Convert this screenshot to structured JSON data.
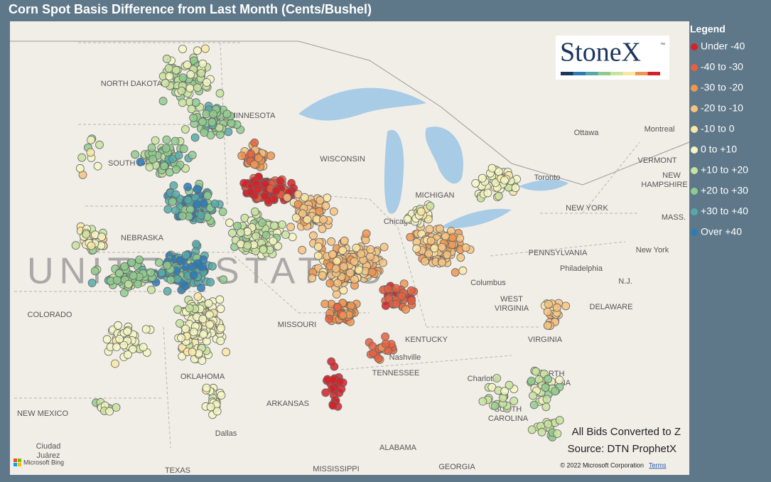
{
  "title": "Corn Spot Basis Difference from Last Month (Cents/Bushel)",
  "legend": {
    "title": "Legend",
    "items": [
      {
        "label": "Under -40",
        "color": "#d62027"
      },
      {
        "label": "-40 to -30",
        "color": "#e8603f"
      },
      {
        "label": "-30 to -20",
        "color": "#f0954f"
      },
      {
        "label": "-20 to -10",
        "color": "#f6c27f"
      },
      {
        "label": "-10 to 0",
        "color": "#fbe7a4"
      },
      {
        "label": "0 to +10",
        "color": "#f4f6c2"
      },
      {
        "label": "+10 to +20",
        "color": "#c8e39d"
      },
      {
        "label": "+20 to +30",
        "color": "#8fcb8d"
      },
      {
        "label": "+30 to +40",
        "color": "#55aaa8"
      },
      {
        "label": "Over +40",
        "color": "#2c7bb9"
      }
    ]
  },
  "logo": {
    "text": "StoneX",
    "mark": "™"
  },
  "map_labels": [
    "NORTH DAKOTA",
    "MINNESOTA",
    "SOUTH DAKOTA",
    "WISCONSIN",
    "MICHIGAN",
    "NEBRASKA",
    "COLORADO",
    "MISSOURI",
    "KENTUCKY",
    "Nashville",
    "TENNESSEE",
    "OKLAHOMA",
    "ARKANSAS",
    "NEW MEXICO",
    "Dallas",
    "Ciudad",
    "Juárez",
    "TEXAS",
    "MISSISSIPPI",
    "ALABAMA",
    "GEORGIA",
    "SOUTH",
    "CAROLINA",
    "NORTH",
    "CAROLINA",
    "Charlotte",
    "VIRGINIA",
    "WEST",
    "VIRGINIA",
    "DELAWARE",
    "Philadelphia",
    "PENNSYLVANIA",
    "New York",
    "NEW YORK",
    "Columbus",
    "Chicago",
    "Ottawa",
    "Montreal",
    "VERMONT",
    "NEW",
    "HAMPSHIRE",
    "MASS.",
    "N.J.",
    "Toronto"
  ],
  "country_label": "UNITED STATES",
  "notes": [
    "All Bids Converted to Z",
    "Source: DTN ProphetX"
  ],
  "attribution": {
    "bing": "Microsoft Bing",
    "copyright": "© 2022 Microsoft Corporation",
    "terms": "Terms"
  }
}
